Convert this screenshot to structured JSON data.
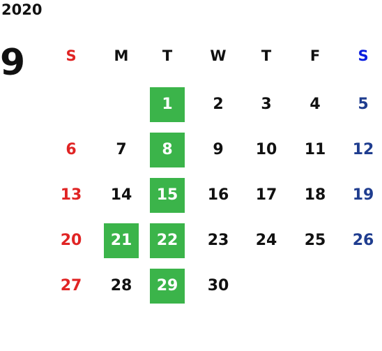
{
  "year": "2020",
  "month": "9",
  "weekdays": [
    "S",
    "M",
    "T",
    "W",
    "T",
    "F",
    "S"
  ],
  "weeks": [
    [
      null,
      null,
      {
        "day": 1,
        "highlight": true
      },
      {
        "day": 2,
        "highlight": false
      },
      {
        "day": 3,
        "highlight": false
      },
      {
        "day": 4,
        "highlight": false
      },
      {
        "day": 5,
        "highlight": false
      }
    ],
    [
      {
        "day": 6,
        "highlight": false
      },
      {
        "day": 7,
        "highlight": false
      },
      {
        "day": 8,
        "highlight": true
      },
      {
        "day": 9,
        "highlight": false
      },
      {
        "day": 10,
        "highlight": false
      },
      {
        "day": 11,
        "highlight": false
      },
      {
        "day": 12,
        "highlight": false
      }
    ],
    [
      {
        "day": 13,
        "highlight": false
      },
      {
        "day": 14,
        "highlight": false
      },
      {
        "day": 15,
        "highlight": true
      },
      {
        "day": 16,
        "highlight": false
      },
      {
        "day": 17,
        "highlight": false
      },
      {
        "day": 18,
        "highlight": false
      },
      {
        "day": 19,
        "highlight": false
      }
    ],
    [
      {
        "day": 20,
        "highlight": false
      },
      {
        "day": 21,
        "highlight": true
      },
      {
        "day": 22,
        "highlight": true
      },
      {
        "day": 23,
        "highlight": false
      },
      {
        "day": 24,
        "highlight": false
      },
      {
        "day": 25,
        "highlight": false
      },
      {
        "day": 26,
        "highlight": false
      }
    ],
    [
      {
        "day": 27,
        "highlight": false
      },
      {
        "day": 28,
        "highlight": false
      },
      {
        "day": 29,
        "highlight": true
      },
      {
        "day": 30,
        "highlight": false
      },
      null,
      null,
      null
    ]
  ]
}
